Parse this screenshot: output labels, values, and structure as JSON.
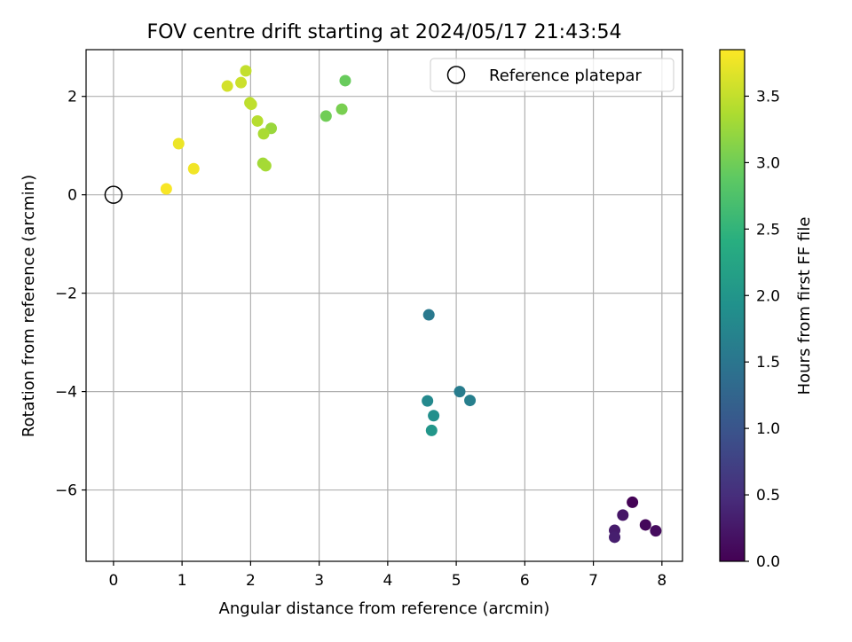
{
  "chart_data": {
    "type": "scatter",
    "title": "FOV centre drift starting at 2024/05/17 21:43:54",
    "xlabel": "Angular distance from reference (arcmin)",
    "ylabel": "Rotation from reference (arcmin)",
    "xlim": [
      -0.4,
      8.3
    ],
    "ylim": [
      -7.45,
      2.95
    ],
    "xticks": [
      0,
      1,
      2,
      3,
      4,
      5,
      6,
      7,
      8
    ],
    "yticks": [
      -6,
      -4,
      -2,
      0,
      2
    ],
    "grid": true,
    "legend": {
      "placement": "top-right",
      "entries": [
        "Reference platepar"
      ]
    },
    "reference_point": {
      "x": 0,
      "y": 0,
      "label": "Reference platepar"
    },
    "colorbar": {
      "label": "Hours from first FF file",
      "colormap": "viridis",
      "range": [
        0.0,
        3.85
      ],
      "ticks": [
        "0.0",
        "0.5",
        "1.0",
        "1.5",
        "2.0",
        "2.5",
        "3.0",
        "3.5"
      ]
    },
    "points": [
      {
        "x": 7.57,
        "y": -6.25,
        "hours": 0.02
      },
      {
        "x": 7.76,
        "y": -6.71,
        "hours": 0.08
      },
      {
        "x": 7.91,
        "y": -6.83,
        "hours": 0.12
      },
      {
        "x": 7.43,
        "y": -6.51,
        "hours": 0.22
      },
      {
        "x": 7.31,
        "y": -6.82,
        "hours": 0.28
      },
      {
        "x": 7.31,
        "y": -6.96,
        "hours": 0.32
      },
      {
        "x": 4.6,
        "y": -2.44,
        "hours": 1.55
      },
      {
        "x": 5.05,
        "y": -4.0,
        "hours": 1.6
      },
      {
        "x": 5.2,
        "y": -4.18,
        "hours": 1.65
      },
      {
        "x": 4.58,
        "y": -4.19,
        "hours": 1.8
      },
      {
        "x": 4.67,
        "y": -4.49,
        "hours": 1.9
      },
      {
        "x": 4.64,
        "y": -4.79,
        "hours": 2.0
      },
      {
        "x": 3.38,
        "y": 2.32,
        "hours": 2.95
      },
      {
        "x": 3.1,
        "y": 1.6,
        "hours": 3.0
      },
      {
        "x": 3.33,
        "y": 1.74,
        "hours": 3.05
      },
      {
        "x": 2.3,
        "y": 1.35,
        "hours": 3.25
      },
      {
        "x": 2.18,
        "y": 0.64,
        "hours": 3.3
      },
      {
        "x": 2.22,
        "y": 0.59,
        "hours": 3.32
      },
      {
        "x": 2.19,
        "y": 1.24,
        "hours": 3.35
      },
      {
        "x": 2.1,
        "y": 1.5,
        "hours": 3.42
      },
      {
        "x": 1.99,
        "y": 1.87,
        "hours": 3.45
      },
      {
        "x": 2.01,
        "y": 1.84,
        "hours": 3.48
      },
      {
        "x": 1.93,
        "y": 2.52,
        "hours": 3.5
      },
      {
        "x": 1.86,
        "y": 2.28,
        "hours": 3.55
      },
      {
        "x": 1.66,
        "y": 2.21,
        "hours": 3.6
      },
      {
        "x": 0.95,
        "y": 1.04,
        "hours": 3.75
      },
      {
        "x": 1.17,
        "y": 0.53,
        "hours": 3.78
      },
      {
        "x": 0.77,
        "y": 0.12,
        "hours": 3.82
      }
    ]
  }
}
